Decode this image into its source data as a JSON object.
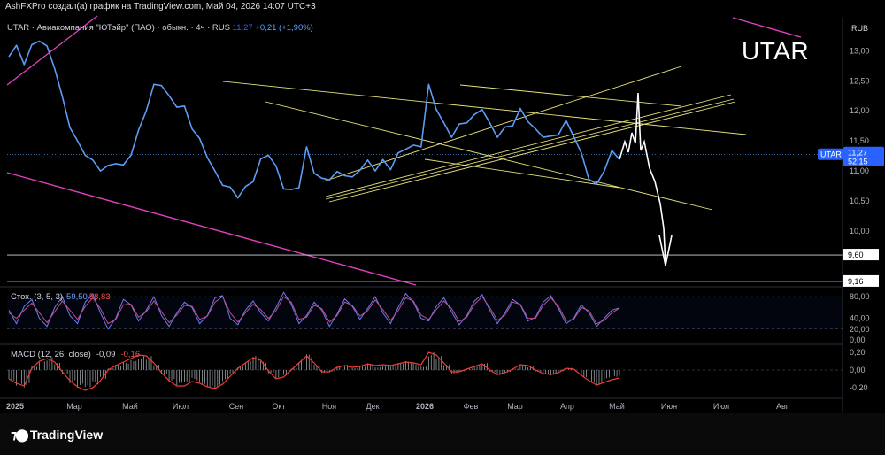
{
  "header": {
    "author_line": "AshFXPro создал(а) график на TradingView.com, Май 04, 2026 14:07 UTC+3"
  },
  "legend": {
    "symbol": "UTAR · Авиакомпания \"ЮТэйр\" (ПАО) · обыкн. · 4ч · RUS",
    "last": "11,27",
    "change": "+0,21 (+1,90%)"
  },
  "watermark": "UTAR",
  "currency": "RUB",
  "price_tag": {
    "label": "UTAR",
    "value": "11,27",
    "countdown": "52:15"
  },
  "levels": [
    {
      "value": 9.6,
      "label": "9,60"
    },
    {
      "value": 9.16,
      "label": "9,16"
    }
  ],
  "stoch": {
    "name": "Стох. (3, 5, 3)",
    "k": "59,50",
    "d": "58,83"
  },
  "macd": {
    "name": "MACD (12, 26, close)",
    "macd": "-0,09",
    "signal": "-0,16"
  },
  "colors": {
    "price": "#5b9cf6",
    "trend": "#e6e27a",
    "magenta": "#e040c0",
    "arrow": "#ffffff",
    "k": "#6a7cf5",
    "d": "#c2508a",
    "hist": "#9aa0a6",
    "macd_line": "#ef3b36"
  },
  "footer": {
    "brand": "TradingView"
  },
  "chart_data": [
    {
      "type": "line",
      "series": [
        {
          "name": "UTAR",
          "values": [
            12.9,
            13.05,
            12.85,
            13.1,
            13.2,
            13.0,
            12.7,
            12.2,
            11.8,
            11.5,
            11.3,
            11.1,
            11.0,
            11.05,
            11.2,
            11.1,
            11.3,
            11.6,
            12.0,
            12.4,
            12.5,
            12.25,
            12.1,
            12.0,
            11.7,
            11.5,
            11.3,
            11.0,
            10.8,
            10.65,
            10.55,
            10.7,
            10.9,
            11.2,
            11.3,
            11.0,
            10.7,
            10.65,
            10.8,
            11.4,
            11.0,
            10.8,
            10.85,
            10.95,
            11.0,
            10.9,
            11.05,
            11.1,
            11.0,
            11.15,
            11.1,
            11.3,
            11.4,
            11.35,
            11.4,
            12.4,
            12.1,
            11.8,
            11.6,
            11.7,
            11.8,
            11.9,
            12.1,
            11.8,
            11.6,
            11.65,
            11.75,
            12.0,
            11.9,
            11.7,
            11.6,
            11.5,
            11.6,
            11.8,
            11.65,
            11.3,
            10.9,
            10.7,
            11.0,
            11.3,
            11.27
          ]
        }
      ],
      "y_ticks": [
        "13,00",
        "12,50",
        "12,00",
        "11,50",
        "11,00",
        "10,50",
        "10,00"
      ],
      "ylim": [
        9.1,
        13.55
      ]
    },
    {
      "type": "line",
      "series": [
        {
          "name": "%K",
          "values": [
            55,
            30,
            62,
            75,
            40,
            25,
            60,
            80,
            45,
            30,
            70,
            85,
            50,
            20,
            40,
            75,
            65,
            35,
            55,
            80,
            45,
            25,
            50,
            70,
            60,
            30,
            45,
            78,
            82,
            40,
            28,
            55,
            72,
            50,
            35,
            60,
            88,
            66,
            30,
            45,
            70,
            55,
            25,
            48,
            76,
            62,
            38,
            58,
            80,
            50,
            30,
            60,
            86,
            70,
            40,
            35,
            62,
            78,
            52,
            28,
            45,
            72,
            84,
            55,
            30,
            50,
            75,
            65,
            35,
            42,
            70,
            82,
            58,
            30,
            40,
            65,
            50,
            25,
            40,
            55,
            59.5
          ]
        },
        {
          "name": "%D",
          "values": [
            50,
            40,
            55,
            68,
            50,
            32,
            52,
            72,
            55,
            38,
            62,
            78,
            58,
            30,
            38,
            65,
            66,
            42,
            52,
            72,
            52,
            32,
            46,
            64,
            62,
            38,
            44,
            70,
            80,
            50,
            33,
            50,
            66,
            56,
            40,
            54,
            80,
            70,
            38,
            42,
            64,
            58,
            33,
            45,
            70,
            64,
            44,
            54,
            74,
            56,
            36,
            54,
            78,
            72,
            46,
            38,
            56,
            72,
            58,
            34,
            42,
            66,
            80,
            60,
            36,
            46,
            70,
            66,
            40,
            40,
            64,
            78,
            62,
            36,
            38,
            60,
            54,
            30,
            36,
            50,
            58.83
          ]
        }
      ],
      "y_ticks": [
        "80,00",
        "40,00",
        "20,00",
        "0,00"
      ],
      "ylim": [
        -5,
        95
      ]
    },
    {
      "type": "bar",
      "series": [
        {
          "name": "Histogram",
          "values": [
            -0.12,
            -0.18,
            -0.2,
            0.05,
            0.12,
            0.15,
            0.08,
            -0.05,
            -0.15,
            -0.22,
            -0.25,
            -0.18,
            -0.1,
            0.02,
            0.06,
            0.1,
            0.14,
            0.18,
            0.16,
            0.06,
            -0.05,
            -0.14,
            -0.2,
            -0.18,
            -0.12,
            -0.16,
            -0.2,
            -0.22,
            -0.14,
            -0.05,
            0.04,
            0.1,
            0.16,
            0.1,
            -0.04,
            -0.12,
            -0.08,
            0.02,
            0.1,
            0.18,
            0.06,
            -0.04,
            -0.02,
            0.04,
            0.06,
            0.02,
            0.05,
            0.08,
            0.04,
            0.06,
            0.05,
            0.08,
            0.1,
            0.08,
            0.05,
            0.22,
            0.16,
            0.06,
            -0.04,
            -0.02,
            0.02,
            0.05,
            0.08,
            -0.02,
            -0.06,
            -0.03,
            0.02,
            0.07,
            0.04,
            -0.02,
            -0.05,
            -0.06,
            -0.02,
            0.03,
            0.0,
            -0.08,
            -0.14,
            -0.18,
            -0.12,
            -0.1,
            -0.09
          ]
        },
        {
          "name": "MACD",
          "values": [
            -0.1,
            -0.15,
            -0.18,
            0.02,
            0.1,
            0.13,
            0.09,
            -0.02,
            -0.12,
            -0.19,
            -0.23,
            -0.2,
            -0.12,
            0.0,
            0.05,
            0.09,
            0.13,
            0.17,
            0.16,
            0.08,
            -0.03,
            -0.12,
            -0.18,
            -0.18,
            -0.13,
            -0.15,
            -0.19,
            -0.21,
            -0.16,
            -0.07,
            0.02,
            0.08,
            0.14,
            0.11,
            -0.01,
            -0.1,
            -0.08,
            0.0,
            0.08,
            0.16,
            0.08,
            -0.02,
            -0.02,
            0.03,
            0.05,
            0.03,
            0.04,
            0.07,
            0.05,
            0.06,
            0.05,
            0.07,
            0.09,
            0.08,
            0.06,
            0.2,
            0.17,
            0.08,
            -0.02,
            -0.02,
            0.01,
            0.04,
            0.07,
            0.0,
            -0.05,
            -0.03,
            0.01,
            0.06,
            0.05,
            0.0,
            -0.04,
            -0.05,
            -0.03,
            0.02,
            0.01,
            -0.06,
            -0.12,
            -0.17,
            -0.14,
            -0.11,
            -0.09
          ]
        }
      ],
      "y_ticks": [
        "0,20",
        "0,00",
        "-0,20"
      ],
      "ylim": [
        -0.3,
        0.28
      ]
    }
  ],
  "x_axis": [
    "2025",
    "Мар",
    "Май",
    "Июл",
    "Сен",
    "Окт",
    "Ноя",
    "Дек",
    "2026",
    "Фев",
    "Мар",
    "Апр",
    "Май",
    "Июн",
    "Июл",
    "Авг"
  ]
}
